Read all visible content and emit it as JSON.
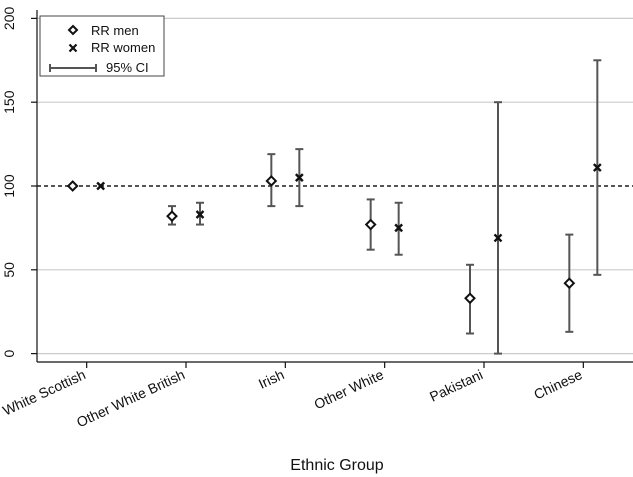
{
  "chart_data": {
    "type": "scatter",
    "title": "",
    "xlabel": "Ethnic Group",
    "ylabel": "",
    "ylim": [
      -5,
      205
    ],
    "yticks": [
      0,
      50,
      100,
      150,
      200
    ],
    "reference_line": 100,
    "grid": "horizontal",
    "legend_position": "top-left",
    "categories": [
      "White Scottish",
      "Other White British",
      "Irish",
      "Other White",
      "Pakistani",
      "Chinese"
    ],
    "series": [
      {
        "name": "RR men",
        "marker": "diamond",
        "values": [
          100,
          82,
          103,
          77,
          33,
          42
        ],
        "ci_low": [
          null,
          77,
          88,
          62,
          12,
          13
        ],
        "ci_high": [
          null,
          88,
          119,
          92,
          53,
          71
        ]
      },
      {
        "name": "RR women",
        "marker": "x",
        "values": [
          100,
          83,
          105,
          75,
          69,
          111
        ],
        "ci_low": [
          null,
          77,
          88,
          59,
          0,
          47
        ],
        "ci_high": [
          null,
          90,
          122,
          90,
          150,
          175
        ]
      }
    ],
    "ci_legend_label": "95% CI",
    "colors": {
      "marker": "#111111",
      "ci": "#555555",
      "grid": "#cccccc",
      "reference": "#555555",
      "axis": "#111111"
    }
  }
}
